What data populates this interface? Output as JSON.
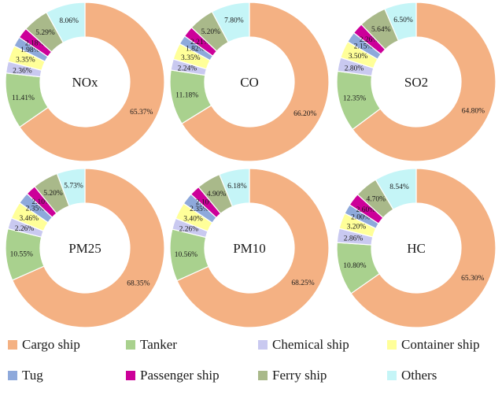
{
  "chart_data": [
    {
      "type": "pie",
      "center_label": "NOx",
      "categories": [
        "Cargo ship",
        "Tanker",
        "Chemical ship",
        "Container ship",
        "Tug",
        "Passenger ship",
        "Ferry ship",
        "Others"
      ],
      "values": [
        65.37,
        11.41,
        2.36,
        3.35,
        1.98,
        2.18,
        5.29,
        8.06
      ],
      "labels": [
        "65.37%",
        "11.41%",
        "2.36%",
        "3.35%",
        "1.98%",
        "2.18%",
        "5.29%",
        "8.06%"
      ]
    },
    {
      "type": "pie",
      "center_label": "CO",
      "categories": [
        "Cargo ship",
        "Tanker",
        "Chemical ship",
        "Container ship",
        "Tug",
        "Passenger ship",
        "Ferry ship",
        "Others"
      ],
      "values": [
        66.2,
        11.18,
        2.24,
        3.35,
        1.82,
        2.21,
        5.2,
        7.8
      ],
      "labels": [
        "66.20%",
        "11.18%",
        "2.24%",
        "3.35%",
        "1.82%",
        "2.21%",
        "5.20%",
        "7.80%"
      ]
    },
    {
      "type": "pie",
      "center_label": "SO2",
      "categories": [
        "Cargo ship",
        "Tanker",
        "Chemical ship",
        "Container ship",
        "Tug",
        "Passenger ship",
        "Ferry ship",
        "Others"
      ],
      "values": [
        64.8,
        12.35,
        2.8,
        3.5,
        2.15,
        2.26,
        5.64,
        6.5
      ],
      "labels": [
        "64.80%",
        "12.35%",
        "2.80%",
        "3.50%",
        "2.15%",
        "2.26%",
        "5.64%",
        "6.50%"
      ]
    },
    {
      "type": "pie",
      "center_label": "PM25",
      "categories": [
        "Cargo ship",
        "Tanker",
        "Chemical ship",
        "Container ship",
        "Tug",
        "Passenger ship",
        "Ferry ship",
        "Others"
      ],
      "values": [
        68.35,
        10.55,
        2.26,
        3.46,
        2.35,
        2.1,
        5.2,
        5.73
      ],
      "labels": [
        "68.35%",
        "10.55%",
        "2.26%",
        "3.46%",
        "2.35%",
        "2.10%",
        "5.20%",
        "5.73%"
      ]
    },
    {
      "type": "pie",
      "center_label": "PM10",
      "categories": [
        "Cargo ship",
        "Tanker",
        "Chemical ship",
        "Container ship",
        "Tug",
        "Passenger ship",
        "Ferry ship",
        "Others"
      ],
      "values": [
        68.25,
        10.56,
        2.26,
        3.4,
        2.35,
        2.1,
        4.9,
        6.18
      ],
      "labels": [
        "68.25%",
        "10.56%",
        "2.26%",
        "3.40%",
        "2.35%",
        "2.10%",
        "4.90%",
        "6.18%"
      ]
    },
    {
      "type": "pie",
      "center_label": "HC",
      "categories": [
        "Cargo ship",
        "Tanker",
        "Chemical ship",
        "Container ship",
        "Tug",
        "Passenger ship",
        "Ferry ship",
        "Others"
      ],
      "values": [
        65.3,
        10.8,
        2.86,
        3.2,
        2.0,
        2.6,
        4.7,
        8.54
      ],
      "labels": [
        "65.30%",
        "10.80%",
        "2.86%",
        "3.20%",
        "2.00%",
        "2.60%",
        "4.70%",
        "8.54%"
      ]
    }
  ],
  "legend": [
    {
      "label": "Cargo ship",
      "color": "#F4B183"
    },
    {
      "label": "Tanker",
      "color": "#A9D18E"
    },
    {
      "label": "Chemical ship",
      "color": "#C9C9F0"
    },
    {
      "label": "Container ship",
      "color": "#FFFF99"
    },
    {
      "label": "Tug",
      "color": "#8EA9DB"
    },
    {
      "label": "Passenger ship",
      "color": "#CC0099"
    },
    {
      "label": "Ferry ship",
      "color": "#A9B98A"
    },
    {
      "label": "Others",
      "color": "#C5F5F7"
    }
  ],
  "legend_placement": "bottom"
}
